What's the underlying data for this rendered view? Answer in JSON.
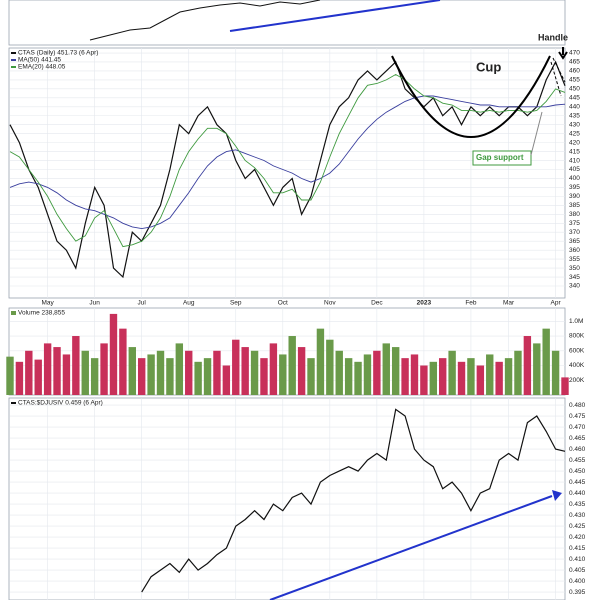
{
  "chart_data": [
    {
      "type": "line",
      "categories": [
        null,
        null,
        null,
        null,
        "May",
        null,
        null,
        null,
        null,
        "Jun",
        null,
        null,
        null,
        null,
        "Jul",
        null,
        null,
        null,
        null,
        "Aug",
        null,
        null,
        null,
        null,
        "Sep",
        null,
        null,
        null,
        null,
        "Oct",
        null,
        null,
        null,
        null,
        "Nov",
        null,
        null,
        null,
        null,
        "Dec",
        null,
        null,
        null,
        null,
        "2023",
        null,
        null,
        null,
        null,
        "Feb",
        null,
        null,
        null,
        "Mar",
        null,
        null,
        null,
        null,
        "Apr",
        null
      ],
      "series": [
        {
          "name": "CTAS (Daily) 451.73 (6 Apr)",
          "color": "#111111",
          "values": [
            430,
            420,
            405,
            395,
            380,
            365,
            360,
            350,
            375,
            395,
            385,
            350,
            345,
            370,
            365,
            375,
            385,
            405,
            430,
            425,
            435,
            440,
            430,
            425,
            410,
            400,
            405,
            395,
            385,
            395,
            400,
            380,
            390,
            410,
            430,
            440,
            445,
            455,
            460,
            455,
            460,
            465,
            450,
            445,
            440,
            445,
            435,
            440,
            430,
            440,
            435,
            440,
            435,
            440,
            440,
            435,
            440,
            455,
            465,
            451.73
          ]
        },
        {
          "name": "MA(50) 441.45",
          "color": "#3a3f9e",
          "values": [
            395,
            397,
            398,
            397,
            395,
            392,
            388,
            385,
            383,
            382,
            380,
            378,
            375,
            373,
            372,
            373,
            375,
            378,
            385,
            392,
            400,
            407,
            412,
            415,
            416,
            414,
            412,
            410,
            407,
            405,
            403,
            400,
            398,
            400,
            403,
            408,
            415,
            422,
            428,
            433,
            437,
            440,
            443,
            445,
            446,
            446,
            445,
            444,
            443,
            442,
            441,
            441,
            440,
            440,
            440,
            440,
            440,
            440,
            441,
            441.45
          ]
        },
        {
          "name": "EMA(20) 448.05",
          "color": "#3f9a3f",
          "values": [
            415,
            412,
            405,
            398,
            390,
            380,
            372,
            365,
            368,
            378,
            382,
            372,
            362,
            363,
            365,
            370,
            378,
            390,
            405,
            415,
            422,
            428,
            428,
            425,
            418,
            410,
            406,
            400,
            392,
            392,
            394,
            388,
            388,
            398,
            412,
            425,
            435,
            445,
            452,
            453,
            455,
            458,
            455,
            450,
            446,
            445,
            442,
            441,
            438,
            438,
            437,
            438,
            437,
            438,
            438,
            437,
            438,
            443,
            450,
            448.05
          ]
        }
      ],
      "ylim": [
        333.3,
        472.8
      ],
      "yticks": [
        340,
        345,
        350,
        355,
        360,
        365,
        370,
        375,
        380,
        385,
        390,
        395,
        400,
        405,
        410,
        415,
        420,
        425,
        430,
        435,
        440,
        445,
        450,
        455,
        460,
        465,
        470
      ],
      "grid": true,
      "annotations": [
        "Cup",
        "Handle",
        "Gap support"
      ]
    },
    {
      "type": "bar",
      "title": "Volume 238,855",
      "up_color": "#6a9a4a",
      "down_color": "#c8305a",
      "values": [
        520000,
        450000,
        600000,
        480000,
        700000,
        650000,
        550000,
        800000,
        600000,
        500000,
        700000,
        1100000,
        900000,
        650000,
        500000,
        550000,
        600000,
        500000,
        700000,
        600000,
        450000,
        500000,
        600000,
        400000,
        750000,
        650000,
        600000,
        500000,
        700000,
        550000,
        800000,
        650000,
        500000,
        900000,
        750000,
        600000,
        500000,
        450000,
        550000,
        600000,
        700000,
        650000,
        500000,
        550000,
        400000,
        450000,
        500000,
        600000,
        450000,
        500000,
        400000,
        550000,
        450000,
        500000,
        600000,
        800000,
        700000,
        900000,
        600000,
        238855
      ],
      "ylim": [
        0,
        1180000
      ],
      "yticks": [
        {
          "value": 200000,
          "label": "200K"
        },
        {
          "value": 400000,
          "label": "400K"
        },
        {
          "value": 600000,
          "label": "600K"
        },
        {
          "value": 800000,
          "label": "800K"
        },
        {
          "value": 1000000,
          "label": "1.0M"
        }
      ],
      "grid": true
    },
    {
      "type": "line",
      "series": [
        {
          "name": "CTAS:$DJUSIV 0.459 (6 Apr)",
          "color": "#111111",
          "values": [
            null,
            null,
            null,
            null,
            null,
            null,
            null,
            null,
            null,
            null,
            null,
            null,
            null,
            null,
            0.395,
            0.402,
            0.405,
            0.408,
            0.404,
            0.41,
            0.405,
            0.408,
            0.412,
            0.415,
            0.425,
            0.428,
            0.432,
            0.428,
            0.435,
            0.432,
            0.438,
            0.44,
            0.435,
            0.445,
            0.448,
            0.45,
            0.452,
            0.45,
            0.455,
            0.458,
            0.455,
            0.478,
            0.475,
            0.46,
            0.455,
            0.452,
            0.442,
            0.445,
            0.44,
            0.432,
            0.44,
            0.442,
            0.455,
            0.458,
            0.455,
            0.472,
            0.475,
            0.468,
            0.46,
            0.459
          ]
        }
      ],
      "ylim": [
        0.3914,
        0.4832
      ],
      "yticks": [
        0.395,
        {
          "value": 0.4,
          "label": "0.400"
        },
        0.405,
        {
          "value": 0.41,
          "label": "0.410"
        },
        0.415,
        {
          "value": 0.42,
          "label": "0.420"
        },
        0.425,
        {
          "value": 0.43,
          "label": "0.430"
        },
        0.435,
        {
          "value": 0.44,
          "label": "0.440"
        },
        0.445,
        {
          "value": 0.45,
          "label": "0.450"
        },
        0.455,
        {
          "value": 0.46,
          "label": "0.460"
        },
        0.465,
        {
          "value": 0.47,
          "label": "0.470"
        },
        0.475,
        {
          "value": 0.48,
          "label": "0.480"
        }
      ],
      "grid": true
    }
  ]
}
